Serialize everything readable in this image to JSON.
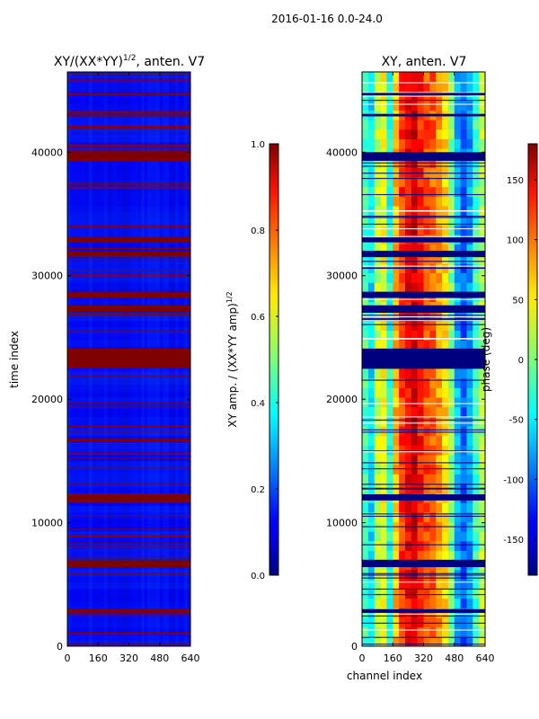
{
  "figure": {
    "suptitle": "2016-01-16 0.0-24.0"
  },
  "chart_data": [
    {
      "type": "heatmap",
      "title": "XY/(XX*YY)^{1/2}, anten. V7",
      "title_main": "XY/(XX*YY)",
      "title_sup": "1/2",
      "title_tail": ", anten. V7",
      "xlabel": "",
      "ylabel": "time index",
      "x_range": [
        0,
        640
      ],
      "y_range": [
        0,
        46500
      ],
      "x_ticks": [
        0,
        160,
        320,
        480,
        640
      ],
      "y_ticks": [
        0,
        10000,
        20000,
        30000,
        40000
      ],
      "colormap": "jet",
      "colorbar": {
        "label": "XY amp. / (XX*YY amp)^{1/2}",
        "label_main": "XY amp. / (XX*YY amp)",
        "label_sup": "1/2",
        "range": [
          0.0,
          1.0
        ],
        "ticks": [
          "0.0",
          "0.2",
          "0.4",
          "0.6",
          "0.8",
          "1.0"
        ]
      },
      "flagged_time_bands": [
        [
          6400,
          7000
        ],
        [
          2700,
          3000
        ],
        [
          11800,
          12300
        ],
        [
          22500,
          24100
        ],
        [
          27000,
          27600
        ],
        [
          28200,
          28700
        ],
        [
          31500,
          32000
        ],
        [
          32700,
          33100
        ],
        [
          39300,
          40000
        ],
        [
          42900,
          43100
        ],
        [
          44600,
          44800
        ]
      ]
    },
    {
      "type": "heatmap",
      "title": "XY, anten. V7",
      "xlabel": "channel index",
      "ylabel": "",
      "x_range": [
        0,
        640
      ],
      "y_range": [
        0,
        46500
      ],
      "x_ticks": [
        0,
        160,
        320,
        480,
        640
      ],
      "y_ticks": [
        0,
        10000,
        20000,
        30000,
        40000
      ],
      "colormap": "jet",
      "colorbar": {
        "label": "phase (deg)",
        "range": [
          -180,
          180
        ],
        "ticks": [
          -150,
          -100,
          -50,
          0,
          50,
          100,
          150
        ]
      },
      "flagged_time_bands": [
        [
          6400,
          7000
        ],
        [
          2700,
          3000
        ],
        [
          11800,
          12300
        ],
        [
          22500,
          24100
        ],
        [
          27000,
          27600
        ],
        [
          28200,
          28700
        ],
        [
          31500,
          32000
        ],
        [
          32700,
          33100
        ],
        [
          39300,
          40000
        ],
        [
          42900,
          43100
        ],
        [
          44600,
          44800
        ]
      ]
    }
  ]
}
